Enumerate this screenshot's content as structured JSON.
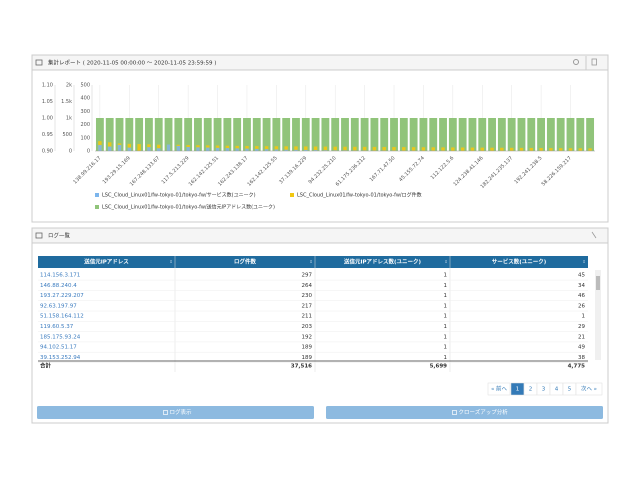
{
  "report_panel": {
    "title": "集計レポート ( 2020-11-05 00:00:00 ～ 2020-11-05 23:59:59 )"
  },
  "chart_data": {
    "type": "bar",
    "categories": [
      "138.99.216.17",
      null,
      null,
      "193.29.15.169",
      null,
      null,
      "167.248.133.67",
      null,
      null,
      "117.5.213.229",
      null,
      null,
      "162.142.125.51",
      null,
      null,
      "162.243.138.17",
      null,
      null,
      "162.142.125.55",
      null,
      null,
      "37.139.16.229",
      null,
      null,
      "94.232.25.210",
      null,
      null,
      "61.175.236.212",
      null,
      null,
      "167.71.47.50",
      null,
      null,
      "45.155.72.74",
      null,
      null,
      "112.122.5.6",
      null,
      null,
      "124.238.41.146",
      null,
      null,
      "182.241.235.137",
      null,
      null,
      "192.241.238.5",
      null,
      null,
      "58.226.159.217",
      null,
      null
    ],
    "series": [
      {
        "name": "LSC_Cloud_Linux01/fw-tokyo-01/tokyo-fw/送信元IPアドレス数(ユニーク)",
        "color": "#90c47a",
        "axis": "y",
        "values": [
          1,
          1,
          1,
          1,
          1,
          1,
          1,
          1,
          1,
          1,
          1,
          1,
          1,
          1,
          1,
          1,
          1,
          1,
          1,
          1,
          1,
          1,
          1,
          1,
          1,
          1,
          1,
          1,
          1,
          1,
          1,
          1,
          1,
          1,
          1,
          1,
          1,
          1,
          1,
          1,
          1,
          1,
          1,
          1,
          1,
          1,
          1,
          1,
          1,
          1,
          1
        ]
      },
      {
        "name": "LSC_Cloud_Linux01/fw-tokyo-01/tokyo-fw/ログ件数",
        "color": "#f2c811",
        "axis": "y2",
        "values": [
          297,
          264,
          230,
          217,
          211,
          203,
          192,
          189,
          189,
          180,
          175,
          170,
          165,
          160,
          155,
          150,
          148,
          146,
          144,
          142,
          140,
          138,
          136,
          134,
          132,
          130,
          128,
          126,
          124,
          122,
          120,
          118,
          116,
          114,
          112,
          110,
          108,
          106,
          104,
          102,
          100,
          98,
          96,
          94,
          92,
          90,
          88,
          86,
          84,
          82,
          80
        ]
      },
      {
        "name": "LSC_Cloud_Linux01/fw-tokyo-01/tokyo-fw/サービス数(ユニーク)",
        "color": "#7cb5ec",
        "axis": "y3",
        "values": [
          45,
          34,
          46,
          26,
          1,
          29,
          21,
          49,
          38,
          30,
          28,
          26,
          24,
          22,
          20,
          18,
          16,
          14,
          12,
          10,
          9,
          8,
          7,
          6,
          5,
          5,
          4,
          4,
          3,
          3,
          3,
          2,
          2,
          2,
          2,
          2,
          1,
          1,
          1,
          1,
          1,
          1,
          1,
          1,
          1,
          1,
          1,
          1,
          1,
          1,
          1
        ]
      }
    ],
    "ylim": [
      0.9,
      1.1
    ],
    "yticks": [
      {
        "value": 0.9,
        "label": "0.90"
      },
      0.95,
      {
        "value": 1,
        "label": "1.00"
      },
      1.05,
      {
        "value": 1.1,
        "label": "1.10"
      }
    ],
    "y2lim": [
      0,
      2000
    ],
    "y2ticks": [
      0,
      500,
      {
        "value": 1000,
        "label": "1k"
      },
      {
        "value": 1500,
        "label": "1.5k"
      },
      {
        "value": 2000,
        "label": "2k"
      }
    ],
    "y3lim": [
      0,
      500
    ],
    "y3ticks": [
      0,
      100,
      200,
      300,
      400,
      500
    ],
    "grid": true
  },
  "log_panel": {
    "title": "ログ一覧",
    "table": {
      "columns": [
        "送信元IPアドレス",
        "ログ件数",
        "送信元IPアドレス数(ユニーク)",
        "サービス数(ユニーク)"
      ],
      "rows": [
        [
          "114.156.3.171",
          297,
          1,
          45
        ],
        [
          "146.88.240.4",
          264,
          1,
          34
        ],
        [
          "193.27.229.207",
          230,
          1,
          46
        ],
        [
          "92.63.197.97",
          217,
          1,
          26
        ],
        [
          "51.158.164.112",
          211,
          1,
          1
        ],
        [
          "119.60.5.37",
          203,
          1,
          29
        ],
        [
          "185.175.93.24",
          192,
          1,
          21
        ],
        [
          "94.102.51.17",
          189,
          1,
          49
        ],
        [
          "39.153.252.94",
          189,
          1,
          38
        ]
      ],
      "total": [
        "合計",
        "37,516",
        "5,699",
        "4,775"
      ]
    },
    "pagination": [
      "« 前へ",
      "1",
      "2",
      "3",
      "4",
      "5",
      "次へ »"
    ],
    "buttons": [
      "ログ表示",
      "クローズアップ分析"
    ]
  }
}
